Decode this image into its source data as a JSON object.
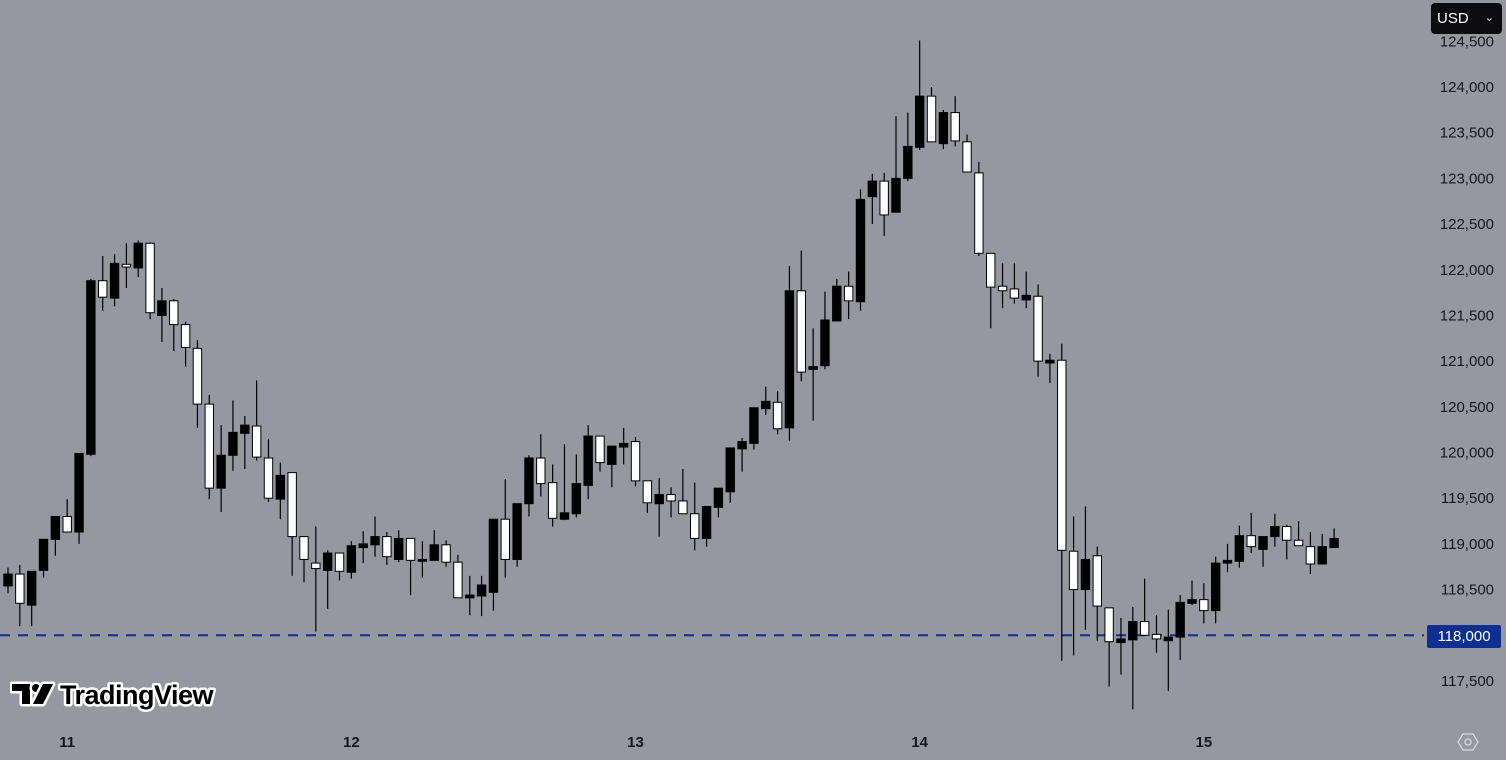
{
  "currency_selector": {
    "label": "USD",
    "icon": "chevron-down-icon"
  },
  "logo": {
    "text": "TradingView"
  },
  "settings_icon": "gear-icon",
  "price_line": {
    "value": 118000,
    "label": "118,000",
    "color": "#0d2f8f",
    "style": "dashed"
  },
  "colors": {
    "background": "#9598a1",
    "up_body": "#000000",
    "down_body": "#ffffff",
    "wick": "#000000"
  },
  "chart_data": {
    "type": "candlestick",
    "interval_note": "",
    "y_ticks": [
      {
        "value": 124500,
        "label": "124,500"
      },
      {
        "value": 124000,
        "label": "124,000"
      },
      {
        "value": 123500,
        "label": "123,500"
      },
      {
        "value": 123000,
        "label": "123,000"
      },
      {
        "value": 122500,
        "label": "122,500"
      },
      {
        "value": 122000,
        "label": "122,000"
      },
      {
        "value": 121500,
        "label": "121,500"
      },
      {
        "value": 121000,
        "label": "121,000"
      },
      {
        "value": 120500,
        "label": "120,500"
      },
      {
        "value": 120000,
        "label": "120,000"
      },
      {
        "value": 119500,
        "label": "119,500"
      },
      {
        "value": 119000,
        "label": "119,000"
      },
      {
        "value": 118500,
        "label": "118,500"
      },
      {
        "value": 117500,
        "label": "117,500"
      }
    ],
    "x_ticks": [
      {
        "label": "11",
        "candle_index": 5
      },
      {
        "label": "12",
        "candle_index": 29
      },
      {
        "label": "13",
        "candle_index": 53
      },
      {
        "label": "14",
        "candle_index": 77
      },
      {
        "label": "15",
        "candle_index": 101
      }
    ],
    "ohlc_fields": [
      "open",
      "high",
      "low",
      "close"
    ],
    "candles": [
      [
        118540,
        118740,
        118460,
        118670
      ],
      [
        118670,
        118770,
        118100,
        118350
      ],
      [
        118330,
        118700,
        118100,
        118700
      ],
      [
        118710,
        119050,
        118630,
        119050
      ],
      [
        119050,
        119300,
        118870,
        119300
      ],
      [
        119300,
        119490,
        119130,
        119130
      ],
      [
        119130,
        119990,
        119000,
        119990
      ],
      [
        119980,
        121900,
        119960,
        121880
      ],
      [
        121880,
        122150,
        121550,
        121700
      ],
      [
        121690,
        122170,
        121600,
        122070
      ],
      [
        122060,
        122290,
        121800,
        122030
      ],
      [
        122020,
        122320,
        121920,
        122290
      ],
      [
        122290,
        122300,
        121460,
        121530
      ],
      [
        121500,
        121800,
        121210,
        121660
      ],
      [
        121660,
        121680,
        121110,
        121400
      ],
      [
        121400,
        121430,
        120940,
        121150
      ],
      [
        121140,
        121230,
        120270,
        120530
      ],
      [
        120530,
        120630,
        119490,
        119610
      ],
      [
        119610,
        120300,
        119350,
        119970
      ],
      [
        119970,
        120570,
        119800,
        120220
      ],
      [
        120210,
        120400,
        119820,
        120300
      ],
      [
        120290,
        120790,
        119910,
        119950
      ],
      [
        119940,
        120150,
        119460,
        119500
      ],
      [
        119490,
        119890,
        119270,
        119750
      ],
      [
        119780,
        119780,
        118650,
        119080
      ],
      [
        119080,
        119080,
        118580,
        118830
      ],
      [
        118790,
        119190,
        118040,
        118730
      ],
      [
        118710,
        118930,
        118290,
        118900
      ],
      [
        118900,
        118900,
        118600,
        118700
      ],
      [
        118690,
        119030,
        118620,
        118980
      ],
      [
        118960,
        119140,
        118790,
        119000
      ],
      [
        118990,
        119300,
        118860,
        119080
      ],
      [
        119080,
        119130,
        118770,
        118860
      ],
      [
        118830,
        119150,
        118800,
        119060
      ],
      [
        119060,
        119060,
        118440,
        118820
      ],
      [
        118810,
        119030,
        118630,
        118830
      ],
      [
        118820,
        119150,
        118820,
        118990
      ],
      [
        118990,
        119040,
        118750,
        118800
      ],
      [
        118800,
        118880,
        118410,
        118410
      ],
      [
        118410,
        118650,
        118220,
        118440
      ],
      [
        118430,
        118650,
        118210,
        118550
      ],
      [
        118470,
        119270,
        118270,
        119270
      ],
      [
        119270,
        119710,
        118630,
        118830
      ],
      [
        118830,
        119440,
        118750,
        119440
      ],
      [
        119440,
        119970,
        119300,
        119940
      ],
      [
        119940,
        120200,
        119520,
        119660
      ],
      [
        119670,
        119870,
        119190,
        119280
      ],
      [
        119270,
        120090,
        119260,
        119340
      ],
      [
        119330,
        119980,
        119290,
        119660
      ],
      [
        119640,
        120300,
        119490,
        120180
      ],
      [
        120180,
        120180,
        119790,
        119890
      ],
      [
        119870,
        120070,
        119620,
        120070
      ],
      [
        120060,
        120270,
        119870,
        120100
      ],
      [
        120120,
        120170,
        119630,
        119690
      ],
      [
        119690,
        119690,
        119340,
        119450
      ],
      [
        119440,
        119720,
        119080,
        119540
      ],
      [
        119540,
        119620,
        119290,
        119470
      ],
      [
        119470,
        119820,
        119330,
        119330
      ],
      [
        119330,
        119670,
        118930,
        119060
      ],
      [
        119060,
        119410,
        118970,
        119410
      ],
      [
        119400,
        119610,
        119290,
        119610
      ],
      [
        119570,
        120050,
        119450,
        120050
      ],
      [
        120040,
        120160,
        119790,
        120120
      ],
      [
        120100,
        120490,
        120030,
        120490
      ],
      [
        120480,
        120720,
        120410,
        120560
      ],
      [
        120550,
        120670,
        120200,
        120260
      ],
      [
        120270,
        122040,
        120130,
        121770
      ],
      [
        121770,
        122210,
        120780,
        120880
      ],
      [
        120910,
        121360,
        120350,
        120940
      ],
      [
        120950,
        121760,
        120910,
        121450
      ],
      [
        121440,
        121900,
        121440,
        121820
      ],
      [
        121820,
        121980,
        121460,
        121660
      ],
      [
        121650,
        122880,
        121550,
        122770
      ],
      [
        122800,
        123050,
        122500,
        122970
      ],
      [
        122970,
        123060,
        122370,
        122600
      ],
      [
        122630,
        123680,
        122630,
        123000
      ],
      [
        123000,
        123720,
        122970,
        123350
      ],
      [
        123340,
        124510,
        123310,
        123900
      ],
      [
        123900,
        124000,
        123400,
        123400
      ],
      [
        123380,
        123750,
        123320,
        123720
      ],
      [
        123720,
        123900,
        123350,
        123410
      ],
      [
        123400,
        123480,
        123070,
        123070
      ],
      [
        123060,
        123180,
        122150,
        122180
      ],
      [
        122180,
        122180,
        121360,
        121810
      ],
      [
        121820,
        122070,
        121580,
        121770
      ],
      [
        121790,
        122070,
        121630,
        121690
      ],
      [
        121670,
        121980,
        121580,
        121720
      ],
      [
        121710,
        121840,
        120830,
        121000
      ],
      [
        120980,
        121080,
        120760,
        121010
      ],
      [
        121010,
        121190,
        117720,
        118930
      ],
      [
        118920,
        119300,
        117780,
        118500
      ],
      [
        118500,
        119410,
        118060,
        118830
      ],
      [
        118870,
        118970,
        117940,
        118320
      ],
      [
        118300,
        118300,
        117440,
        117930
      ],
      [
        117920,
        118190,
        117570,
        117960
      ],
      [
        117950,
        118310,
        117190,
        118150
      ],
      [
        118150,
        118620,
        117990,
        118000
      ],
      [
        118010,
        118220,
        117810,
        117960
      ],
      [
        117940,
        118280,
        117390,
        117980
      ],
      [
        117980,
        118440,
        117730,
        118360
      ],
      [
        118350,
        118600,
        118330,
        118390
      ],
      [
        118390,
        118570,
        118130,
        118270
      ],
      [
        118270,
        118860,
        118130,
        118790
      ],
      [
        118790,
        119000,
        118690,
        118820
      ],
      [
        118810,
        119200,
        118740,
        119090
      ],
      [
        119090,
        119340,
        118900,
        118970
      ],
      [
        118940,
        119080,
        118750,
        119080
      ],
      [
        119080,
        119330,
        118970,
        119190
      ],
      [
        119190,
        119210,
        118830,
        119040
      ],
      [
        119040,
        119250,
        118980,
        118980
      ],
      [
        118970,
        119130,
        118670,
        118780
      ],
      [
        118780,
        119110,
        118780,
        118970
      ],
      [
        118960,
        119170,
        118960,
        119060
      ]
    ]
  }
}
